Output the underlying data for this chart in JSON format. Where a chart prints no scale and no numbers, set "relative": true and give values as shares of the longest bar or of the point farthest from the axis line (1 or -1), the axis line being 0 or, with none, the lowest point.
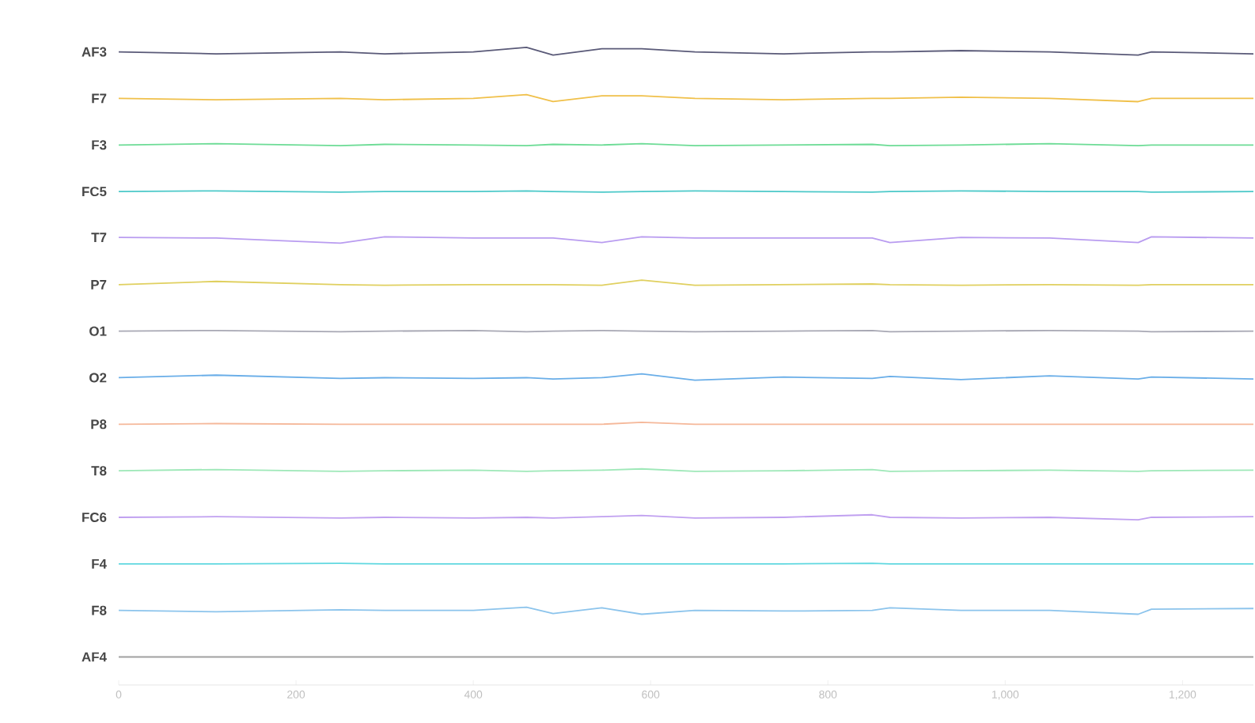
{
  "chart_data": {
    "type": "line",
    "relative": true,
    "xlim": [
      0,
      1280
    ],
    "xticks": [
      0,
      200,
      400,
      600,
      800,
      {
        "value": 1000,
        "label": "1,000"
      },
      {
        "value": 1200,
        "label": "1,200"
      }
    ],
    "x": [
      0,
      110,
      250,
      300,
      400,
      460,
      490,
      545,
      590,
      650,
      750,
      850,
      870,
      950,
      1050,
      1150,
      1165,
      1280
    ],
    "series": [
      {
        "name": "AF3",
        "color": "#5a5a78",
        "values": [
          0.993,
          0.99,
          0.993,
          0.99,
          0.993,
          1.0,
          0.988,
          0.998,
          0.998,
          0.993,
          0.99,
          0.993,
          0.993,
          0.995,
          0.993,
          0.988,
          0.993,
          0.99
        ]
      },
      {
        "name": "F7",
        "color": "#f0c04a",
        "values": [
          0.92,
          0.918,
          0.92,
          0.918,
          0.92,
          0.926,
          0.915,
          0.924,
          0.924,
          0.92,
          0.918,
          0.92,
          0.92,
          0.922,
          0.92,
          0.915,
          0.92,
          0.92
        ]
      },
      {
        "name": "F3",
        "color": "#6ddc96",
        "values": [
          0.847,
          0.849,
          0.846,
          0.848,
          0.847,
          0.846,
          0.848,
          0.847,
          0.849,
          0.846,
          0.847,
          0.848,
          0.846,
          0.847,
          0.849,
          0.846,
          0.847,
          0.847
        ]
      },
      {
        "name": "FC5",
        "color": "#4cc9c9",
        "values": [
          0.774,
          0.775,
          0.773,
          0.774,
          0.774,
          0.775,
          0.774,
          0.773,
          0.774,
          0.775,
          0.774,
          0.773,
          0.774,
          0.775,
          0.774,
          0.774,
          0.773,
          0.774
        ]
      },
      {
        "name": "T7",
        "color": "#b99cf0",
        "values": [
          0.702,
          0.701,
          0.693,
          0.703,
          0.701,
          0.701,
          0.701,
          0.694,
          0.703,
          0.701,
          0.701,
          0.701,
          0.694,
          0.702,
          0.701,
          0.694,
          0.703,
          0.701
        ]
      },
      {
        "name": "P7",
        "color": "#e0d060",
        "values": [
          0.628,
          0.633,
          0.628,
          0.627,
          0.628,
          0.628,
          0.628,
          0.627,
          0.635,
          0.627,
          0.628,
          0.629,
          0.628,
          0.627,
          0.628,
          0.627,
          0.628,
          0.628
        ]
      },
      {
        "name": "O1",
        "color": "#a8a8b4",
        "values": [
          0.555,
          0.556,
          0.554,
          0.555,
          0.556,
          0.554,
          0.555,
          0.556,
          0.555,
          0.554,
          0.555,
          0.556,
          0.554,
          0.555,
          0.556,
          0.555,
          0.554,
          0.555
        ]
      },
      {
        "name": "O2",
        "color": "#6aaee8",
        "values": [
          0.482,
          0.486,
          0.481,
          0.482,
          0.481,
          0.482,
          0.48,
          0.482,
          0.488,
          0.478,
          0.483,
          0.481,
          0.484,
          0.479,
          0.485,
          0.48,
          0.483,
          0.48
        ]
      },
      {
        "name": "P8",
        "color": "#f5b89a",
        "values": [
          0.409,
          0.41,
          0.409,
          0.409,
          0.409,
          0.409,
          0.409,
          0.409,
          0.412,
          0.409,
          0.409,
          0.409,
          0.409,
          0.409,
          0.409,
          0.409,
          0.409,
          0.409
        ]
      },
      {
        "name": "T8",
        "color": "#9ee8b8",
        "values": [
          0.336,
          0.338,
          0.335,
          0.336,
          0.337,
          0.335,
          0.336,
          0.337,
          0.339,
          0.335,
          0.336,
          0.338,
          0.335,
          0.336,
          0.337,
          0.335,
          0.336,
          0.337
        ]
      },
      {
        "name": "FC6",
        "color": "#c0a0f0",
        "values": [
          0.263,
          0.264,
          0.262,
          0.263,
          0.262,
          0.263,
          0.262,
          0.264,
          0.266,
          0.262,
          0.263,
          0.267,
          0.263,
          0.262,
          0.263,
          0.259,
          0.263,
          0.264
        ]
      },
      {
        "name": "F4",
        "color": "#60d8e0",
        "values": [
          0.19,
          0.19,
          0.191,
          0.19,
          0.19,
          0.19,
          0.19,
          0.19,
          0.19,
          0.19,
          0.19,
          0.191,
          0.19,
          0.19,
          0.19,
          0.19,
          0.19,
          0.19
        ]
      },
      {
        "name": "F8",
        "color": "#8cc4ec",
        "values": [
          0.117,
          0.115,
          0.118,
          0.117,
          0.117,
          0.122,
          0.112,
          0.121,
          0.111,
          0.117,
          0.116,
          0.117,
          0.121,
          0.117,
          0.117,
          0.111,
          0.119,
          0.12
        ]
      },
      {
        "name": "AF4",
        "color": "#a0a0a0",
        "values": [
          0.044,
          0.044,
          0.044,
          0.044,
          0.044,
          0.044,
          0.044,
          0.044,
          0.044,
          0.044,
          0.044,
          0.044,
          0.044,
          0.044,
          0.044,
          0.044,
          0.044,
          0.044
        ]
      }
    ]
  }
}
